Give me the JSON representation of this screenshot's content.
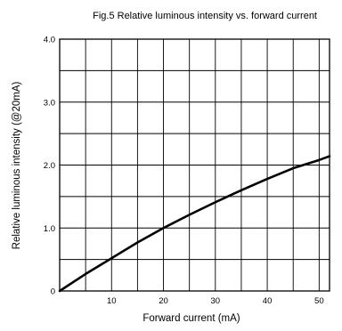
{
  "chart_data": {
    "type": "line",
    "title": "Fig.5 Relative luminous intensity vs. forward current",
    "xlabel": "Forward current (mA)",
    "ylabel": "Relative luminous intensity (@20mA)",
    "xlim": [
      0,
      52
    ],
    "ylim": [
      0,
      4.0
    ],
    "x_ticks": [
      {
        "value": 10,
        "label": "10"
      },
      {
        "value": 20,
        "label": "20"
      },
      {
        "value": 30,
        "label": "30"
      },
      {
        "value": 40,
        "label": "40"
      },
      {
        "value": 50,
        "label": "50"
      }
    ],
    "y_ticks": [
      {
        "value": 0,
        "label": "0"
      },
      {
        "value": 1.0,
        "label": "1.0"
      },
      {
        "value": 2.0,
        "label": "2.0"
      },
      {
        "value": 3.0,
        "label": "3.0"
      },
      {
        "value": 4.0,
        "label": "4.0"
      }
    ],
    "x_gridlines": [
      5,
      10,
      15,
      20,
      25,
      30,
      35,
      40,
      45,
      50
    ],
    "y_gridlines": [
      0.5,
      1.0,
      1.5,
      2.0,
      2.5,
      3.0,
      3.5
    ],
    "grid": true,
    "legend": "none",
    "series": [
      {
        "color": "#000000",
        "x": [
          0,
          5,
          10,
          15,
          20,
          25,
          30,
          35,
          40,
          45,
          50,
          52
        ],
        "y": [
          0,
          0.27,
          0.52,
          0.77,
          1.0,
          1.21,
          1.41,
          1.6,
          1.78,
          1.95,
          2.08,
          2.14
        ]
      }
    ]
  }
}
